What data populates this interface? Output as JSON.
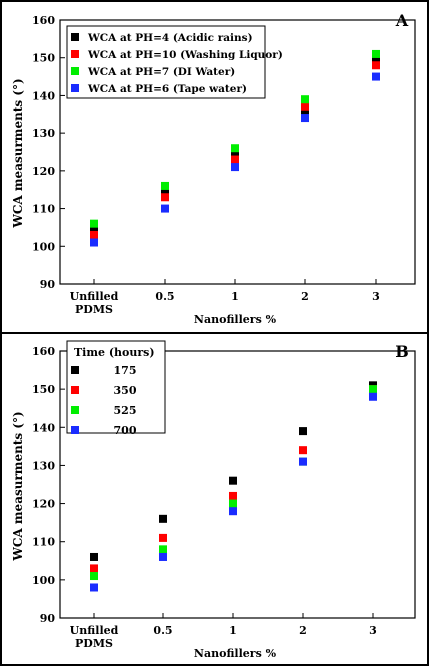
{
  "chart_data": [
    {
      "type": "scatter",
      "panel_label": "A",
      "xlabel": "Nanofillers %",
      "ylabel": "WCA measurments (°)",
      "categories": [
        "Unfilled PDMS",
        "0.5",
        "1",
        "2",
        "3"
      ],
      "ylim": [
        90,
        160
      ],
      "yticks": [
        90,
        100,
        110,
        120,
        130,
        140,
        150,
        160
      ],
      "legend_position": "top-left",
      "series": [
        {
          "name": "WCA at PH=4 (Acidic rains)",
          "color": "#000000",
          "values": [
            104,
            114,
            124,
            136,
            149
          ]
        },
        {
          "name": "WCA at PH=10 (Washing Liquor)",
          "color": "#ff0000",
          "values": [
            103,
            113,
            123,
            137,
            148
          ]
        },
        {
          "name": "WCA at PH=7 (DI Water)",
          "color": "#00ee00",
          "values": [
            106,
            116,
            126,
            139,
            151
          ]
        },
        {
          "name": "WCA at PH=6 (Tape water)",
          "color": "#1a2cff",
          "values": [
            101,
            110,
            121,
            134,
            145
          ]
        }
      ]
    },
    {
      "type": "scatter",
      "panel_label": "B",
      "xlabel": "Nanofillers %",
      "ylabel": "WCA measurments (°)",
      "categories": [
        "Unfilled PDMS",
        "0.5",
        "1",
        "2",
        "3"
      ],
      "ylim": [
        90,
        160
      ],
      "yticks": [
        90,
        100,
        110,
        120,
        130,
        140,
        150,
        160
      ],
      "legend_position": "top-left",
      "legend_title": "Time (hours)",
      "series": [
        {
          "name": "175",
          "color": "#000000",
          "values": [
            106,
            116,
            126,
            139,
            151
          ]
        },
        {
          "name": "350",
          "color": "#ff0000",
          "values": [
            103,
            111,
            122,
            134,
            150
          ]
        },
        {
          "name": "525",
          "color": "#00ee00",
          "values": [
            101,
            108,
            120,
            131,
            150
          ]
        },
        {
          "name": "700",
          "color": "#1a2cff",
          "values": [
            98,
            106,
            118,
            131,
            148
          ]
        }
      ]
    }
  ]
}
